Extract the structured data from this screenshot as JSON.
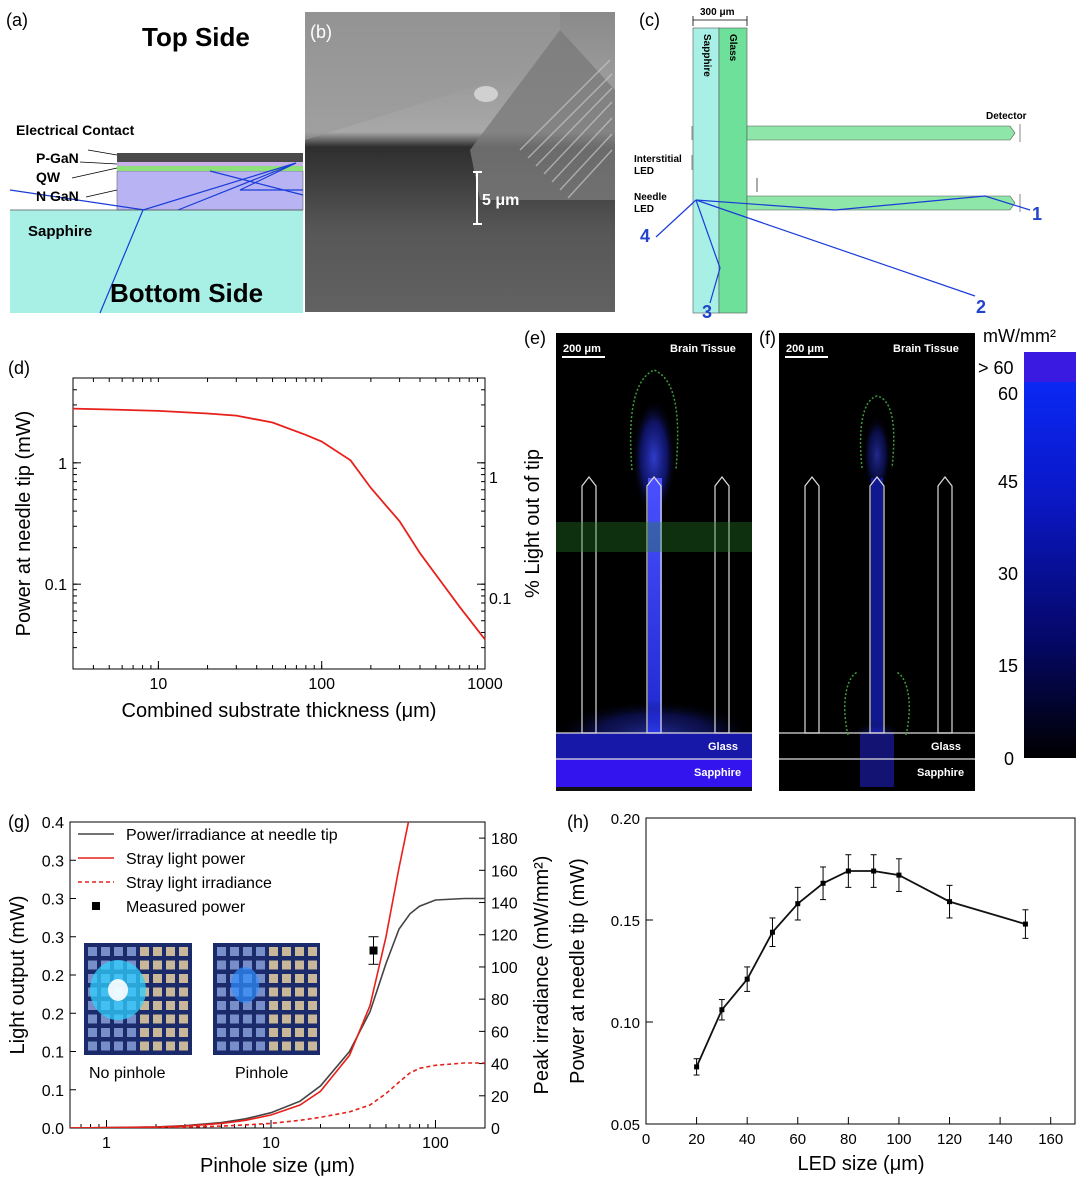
{
  "panel_labels": {
    "a": "(a)",
    "b": "(b)",
    "c": "(c)",
    "d": "(d)",
    "e": "(e)",
    "f": "(f)",
    "g": "(g)",
    "h": "(h)"
  },
  "panel_a": {
    "top_side": "Top Side",
    "bottom_side": "Bottom Side",
    "electrical_contact": "Electrical Contact",
    "p_gan": "P-GaN",
    "qw": "QW",
    "n_gan": "N GaN",
    "sapphire": "Sapphire",
    "colors": {
      "sapphire": "#a8f0e6",
      "ngan": "#b8b4f4",
      "qw": "#8ee07a",
      "contact": "#4a4a4a",
      "ray": "#1a3cd8"
    }
  },
  "panel_b": {
    "scale": "5 μm"
  },
  "panel_c": {
    "dimension": "300 μm",
    "sapphire": "Sapphire",
    "glass": "Glass",
    "detector": "Detector",
    "interstitial_led_1": "Interstitial",
    "interstitial_led_2": "LED",
    "needle_led_1": "Needle",
    "needle_led_2": "LED",
    "ray_numbers": [
      "1",
      "2",
      "3",
      "4"
    ],
    "colors": {
      "sapphire": "#a8f0e6",
      "glass": "#6fe09a",
      "ray": "#1a3cd8",
      "number": "#2244cc"
    }
  },
  "panel_e": {
    "scale": "200 μm",
    "tissue": "Brain Tissue",
    "glass": "Glass",
    "sapphire": "Sapphire"
  },
  "panel_f": {
    "scale": "200 μm",
    "tissue": "Brain Tissue",
    "glass": "Glass",
    "sapphire": "Sapphire"
  },
  "colorbar": {
    "unit": "mW/mm²",
    "ticks": [
      "> 60",
      "60",
      "45",
      "30",
      "15",
      "0"
    ],
    "values": [
      60,
      45,
      30,
      15,
      0
    ]
  },
  "chart_data": [
    {
      "id": "d",
      "type": "line",
      "xlabel": "Combined substrate thickness (μm)",
      "ylabel": "Power at needle tip (mW)",
      "ylabel_right": "% Light out of tip",
      "xscale": "log",
      "yscale": "log",
      "xlim": [
        3,
        1000
      ],
      "ylim": [
        0.02,
        5
      ],
      "xticks": [
        10,
        100,
        1000
      ],
      "xticklabels": [
        "10",
        "100",
        "1000"
      ],
      "yticks": [
        0.1,
        1
      ],
      "yticklabels": [
        "0.1",
        "1"
      ],
      "yticklabels_right": [
        "0.1",
        "1"
      ],
      "series": [
        {
          "color": "#e8201a",
          "x": [
            3,
            5,
            10,
            20,
            30,
            50,
            80,
            100,
            150,
            200,
            300,
            400,
            500,
            700,
            1000
          ],
          "y": [
            2.8,
            2.75,
            2.68,
            2.55,
            2.45,
            2.15,
            1.7,
            1.5,
            1.05,
            0.62,
            0.33,
            0.18,
            0.12,
            0.065,
            0.035
          ]
        }
      ]
    },
    {
      "id": "g",
      "type": "line",
      "xlabel": "Pinhole size (μm)",
      "ylabel": "Light output (mW)",
      "ylabel_right": "Peak irradiance (mW/mm²)",
      "xscale": "log",
      "xlim": [
        0.6,
        200
      ],
      "ylim": [
        0,
        0.4
      ],
      "ylim_right": [
        0,
        190
      ],
      "xticks": [
        1,
        10,
        100
      ],
      "xticklabels": [
        "1",
        "10",
        "100"
      ],
      "yticks": [
        0,
        0.05,
        0.1,
        0.15,
        0.2,
        0.25,
        0.3,
        0.35,
        0.4
      ],
      "yticklabels": [
        "0.0",
        "0.1",
        "0.1",
        "0.2",
        "0.2",
        "0.3",
        "0.3",
        "0.3",
        "0.4"
      ],
      "yticks_right": [
        0,
        20,
        40,
        60,
        80,
        100,
        120,
        140,
        160,
        180
      ],
      "legend": [
        "Power/irradiance at needle tip",
        "Stray light power",
        "Stray light irradiance",
        "Measured power"
      ],
      "series": [
        {
          "name": "Power/irradiance at needle tip",
          "color": "#444444",
          "x": [
            0.6,
            1,
            2,
            3,
            5,
            7,
            10,
            15,
            20,
            30,
            40,
            50,
            60,
            70,
            80,
            100,
            150,
            200
          ],
          "y": [
            0,
            0.0005,
            0.0015,
            0.003,
            0.007,
            0.012,
            0.02,
            0.035,
            0.055,
            0.1,
            0.152,
            0.215,
            0.26,
            0.28,
            0.29,
            0.298,
            0.3,
            0.3
          ]
        },
        {
          "name": "Stray light power",
          "color": "#e8201a",
          "x": [
            0.6,
            1,
            2,
            3,
            5,
            7,
            10,
            15,
            20,
            30,
            40,
            50,
            60,
            70
          ],
          "y": [
            0,
            0.0004,
            0.0012,
            0.0025,
            0.006,
            0.01,
            0.017,
            0.03,
            0.048,
            0.095,
            0.16,
            0.25,
            0.34,
            0.41
          ]
        },
        {
          "name": "Stray light irradiance",
          "color": "#e8201a",
          "dash": true,
          "x": [
            0.6,
            1,
            2,
            3,
            5,
            7,
            10,
            15,
            20,
            30,
            40,
            50,
            60,
            70,
            80,
            100,
            150,
            200
          ],
          "y": [
            0,
            0.0002,
            0.0006,
            0.0012,
            0.0025,
            0.004,
            0.006,
            0.01,
            0.014,
            0.021,
            0.03,
            0.045,
            0.06,
            0.072,
            0.078,
            0.082,
            0.085,
            0.085
          ]
        }
      ],
      "measured": {
        "name": "Measured power",
        "x": 42,
        "y": 0.232,
        "err": 0.018
      },
      "insets": [
        "No pinhole",
        "Pinhole"
      ]
    },
    {
      "id": "h",
      "type": "line",
      "xlabel": "LED size (μm)",
      "ylabel": "Power at needle tip (mW)",
      "xlim": [
        0,
        170
      ],
      "ylim": [
        0.05,
        0.2
      ],
      "xticks": [
        0,
        20,
        40,
        60,
        80,
        100,
        120,
        140,
        160
      ],
      "yticks": [
        0.05,
        0.1,
        0.15,
        0.2
      ],
      "yticklabels": [
        "0.05",
        "0.10",
        "0.15",
        "0.20"
      ],
      "series": [
        {
          "color": "#111111",
          "x": [
            20,
            30,
            40,
            50,
            60,
            70,
            80,
            90,
            100,
            120,
            150
          ],
          "y": [
            0.078,
            0.106,
            0.121,
            0.144,
            0.158,
            0.168,
            0.174,
            0.174,
            0.172,
            0.159,
            0.148
          ],
          "err": [
            0.004,
            0.005,
            0.006,
            0.007,
            0.008,
            0.008,
            0.008,
            0.008,
            0.008,
            0.008,
            0.007
          ]
        }
      ]
    }
  ]
}
